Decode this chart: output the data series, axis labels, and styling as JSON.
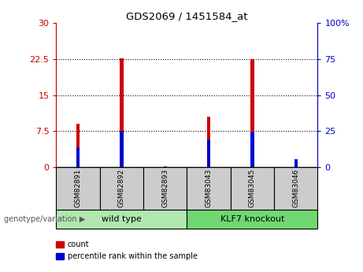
{
  "title": "GDS2069 / 1451584_at",
  "samples": [
    "GSM82891",
    "GSM82892",
    "GSM82893",
    "GSM83043",
    "GSM83045",
    "GSM83046"
  ],
  "count_values": [
    9.0,
    22.7,
    0.15,
    10.5,
    22.5,
    1.5
  ],
  "percentile_values": [
    14.0,
    25.5,
    0.3,
    19.0,
    24.5,
    5.5
  ],
  "groups": [
    {
      "label": "wild type",
      "start": 0,
      "end": 3,
      "color": "#b0e8b0"
    },
    {
      "label": "KLF7 knockout",
      "start": 3,
      "end": 6,
      "color": "#70d870"
    }
  ],
  "group_label": "genotype/variation",
  "left_axis_color": "#cc0000",
  "right_axis_color": "#0000cc",
  "ylim_left": [
    0,
    30
  ],
  "ylim_right": [
    0,
    100
  ],
  "yticks_left": [
    0,
    7.5,
    15,
    22.5,
    30
  ],
  "ytick_labels_left": [
    "0",
    "7.5",
    "15",
    "22.5",
    "30"
  ],
  "yticks_right": [
    0,
    25,
    50,
    75,
    100
  ],
  "ytick_labels_right": [
    "0",
    "25",
    "50",
    "75",
    "100%"
  ],
  "hlines": [
    7.5,
    15,
    22.5
  ],
  "count_color": "#cc0000",
  "percentile_color": "#0000cc",
  "background_plot": "#ffffff",
  "label_box_color": "#cccccc",
  "legend_count": "count",
  "legend_percentile": "percentile rank within the sample"
}
